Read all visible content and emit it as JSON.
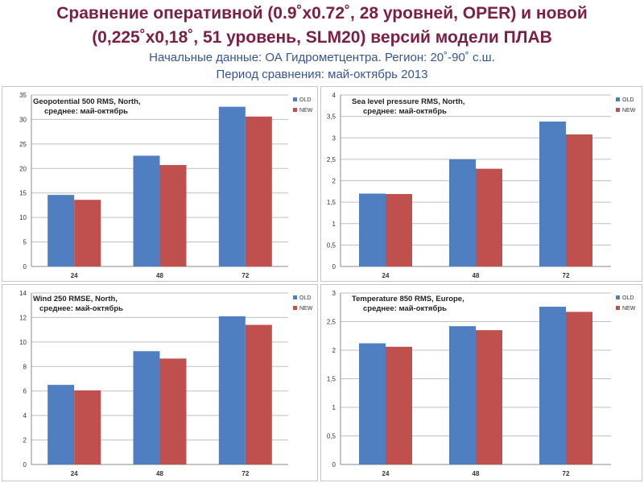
{
  "header": {
    "title_line1": "Сравнение оперативной (0.9˚x0.72˚, 28 уровней, OPER) и новой",
    "title_line2": "(0,225˚x0,18˚, 51 уровень, SLM20) версий модели ПЛАВ",
    "subtitle_line1": "Начальные данные: ОА Гидрометцентра. Регион: 20˚-90˚ с.ш.",
    "subtitle_line2": "Период сравнения: май-октябрь 2013"
  },
  "colors": {
    "old": "#4f7fc1",
    "new": "#c0504d",
    "grid": "#bfbfbf"
  },
  "chart_data": [
    {
      "type": "bar",
      "title": "Geopotential 500 RMS, North,",
      "subtitle": "среднее: май-октябрь",
      "categories": [
        "24",
        "48",
        "72"
      ],
      "series": [
        {
          "name": "OLD",
          "values": [
            14.6,
            22.6,
            32.6
          ]
        },
        {
          "name": "NEW",
          "values": [
            13.6,
            20.7,
            30.6
          ]
        }
      ],
      "ylim": [
        0,
        35
      ],
      "yticks": [
        "0",
        "5",
        "10",
        "15",
        "20",
        "25",
        "30",
        "35"
      ],
      "ytick_values": [
        0,
        5,
        10,
        15,
        20,
        25,
        30,
        35
      ],
      "legend": "top-right"
    },
    {
      "type": "bar",
      "title": "Sea level pressure RMS, North,",
      "subtitle": "среднее: май-октябрь",
      "categories": [
        "24",
        "48",
        "72"
      ],
      "series": [
        {
          "name": "OLD",
          "values": [
            1.7,
            2.5,
            3.38
          ]
        },
        {
          "name": "NEW",
          "values": [
            1.69,
            2.28,
            3.08
          ]
        }
      ],
      "ylim": [
        0,
        4
      ],
      "yticks": [
        "0",
        "0,5",
        "1",
        "1,5",
        "2",
        "2,5",
        "3",
        "3,5",
        "4"
      ],
      "ytick_values": [
        0,
        0.5,
        1,
        1.5,
        2,
        2.5,
        3,
        3.5,
        4
      ],
      "legend": "top-right"
    },
    {
      "type": "bar",
      "title": "Wind 250 RMSE, North,",
      "subtitle": "среднее: май-октябрь",
      "categories": [
        "24",
        "48",
        "72"
      ],
      "series": [
        {
          "name": "OLD",
          "values": [
            6.5,
            9.25,
            12.1
          ]
        },
        {
          "name": "NEW",
          "values": [
            6.05,
            8.65,
            11.4
          ]
        }
      ],
      "ylim": [
        0,
        14
      ],
      "yticks": [
        "0",
        "2",
        "4",
        "6",
        "8",
        "10",
        "12",
        "14"
      ],
      "ytick_values": [
        0,
        2,
        4,
        6,
        8,
        10,
        12,
        14
      ],
      "legend": "top-right"
    },
    {
      "type": "bar",
      "title": "Temperature 850 RMS, Europe,",
      "subtitle": "среднее: май-октябрь",
      "categories": [
        "24",
        "48",
        "72"
      ],
      "series": [
        {
          "name": "OLD",
          "values": [
            2.12,
            2.42,
            2.76
          ]
        },
        {
          "name": "NEW",
          "values": [
            2.06,
            2.35,
            2.67
          ]
        }
      ],
      "ylim": [
        0,
        3
      ],
      "yticks": [
        "0",
        "0,5",
        "1",
        "1,5",
        "2",
        "2,5",
        "3"
      ],
      "ytick_values": [
        0,
        0.5,
        1,
        1.5,
        2,
        2.5,
        3
      ],
      "legend": "top-right"
    }
  ]
}
